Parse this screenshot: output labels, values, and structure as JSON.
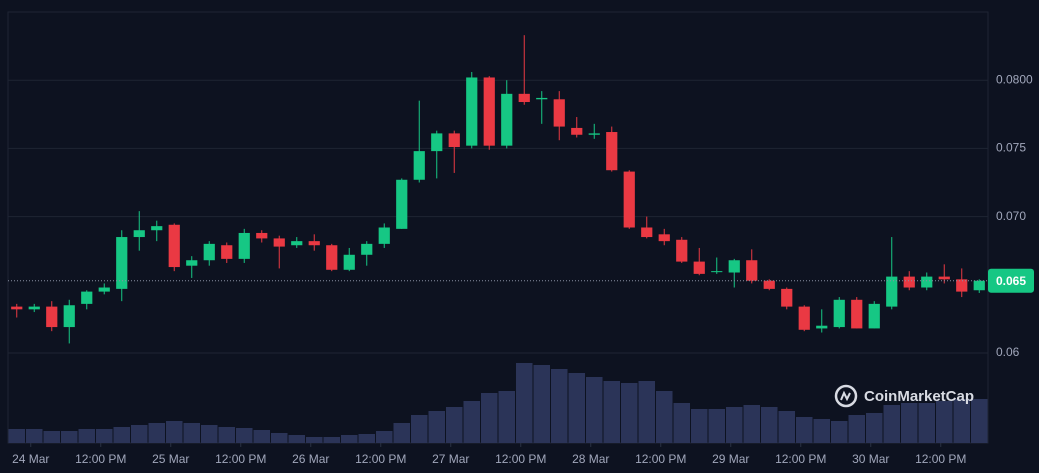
{
  "chart_data": {
    "type": "candlestick",
    "open": [
      0.0634,
      0.0632,
      0.0634,
      0.0619,
      0.0636,
      0.0645,
      0.0647,
      0.0685,
      0.069,
      0.0694,
      0.0664,
      0.0668,
      0.0679,
      0.0669,
      0.0688,
      0.0684,
      0.0679,
      0.0682,
      0.0679,
      0.0661,
      0.0672,
      0.068,
      0.0691,
      0.0727,
      0.0748,
      0.0761,
      0.0752,
      0.0802,
      0.0752,
      0.079,
      0.0786,
      0.0786,
      0.0765,
      0.076,
      0.0762,
      0.0733,
      0.0692,
      0.0687,
      0.0683,
      0.0667,
      0.066,
      0.0659,
      0.0668,
      0.0653,
      0.0647,
      0.0634,
      0.0618,
      0.0619,
      0.0639,
      0.0618,
      0.0634,
      0.0656,
      0.0648,
      0.0656,
      0.0654,
      0.0646
    ],
    "high": [
      0.0636,
      0.0636,
      0.0638,
      0.0639,
      0.0646,
      0.0651,
      0.069,
      0.0704,
      0.0697,
      0.0695,
      0.0671,
      0.0682,
      0.0681,
      0.0691,
      0.069,
      0.0686,
      0.0685,
      0.0687,
      0.068,
      0.0677,
      0.0682,
      0.0695,
      0.0728,
      0.0785,
      0.0763,
      0.0763,
      0.0806,
      0.0803,
      0.08,
      0.0833,
      0.0792,
      0.0792,
      0.0773,
      0.0768,
      0.0766,
      0.0734,
      0.07,
      0.0691,
      0.0685,
      0.0677,
      0.067,
      0.0669,
      0.0676,
      0.0654,
      0.0648,
      0.0635,
      0.0632,
      0.0641,
      0.0641,
      0.0638,
      0.0685,
      0.066,
      0.0659,
      0.0665,
      0.0662,
      0.0654
    ],
    "low": [
      0.0626,
      0.063,
      0.0616,
      0.0607,
      0.0632,
      0.0643,
      0.0638,
      0.0675,
      0.0682,
      0.066,
      0.0655,
      0.0664,
      0.0666,
      0.0666,
      0.0681,
      0.0662,
      0.0677,
      0.0675,
      0.066,
      0.066,
      0.0664,
      0.0677,
      0.0691,
      0.0725,
      0.0728,
      0.0732,
      0.075,
      0.0749,
      0.075,
      0.0782,
      0.0768,
      0.0756,
      0.0758,
      0.0757,
      0.0733,
      0.0691,
      0.0684,
      0.0679,
      0.0666,
      0.0657,
      0.0658,
      0.0648,
      0.0651,
      0.0646,
      0.0632,
      0.0616,
      0.0615,
      0.0618,
      0.0618,
      0.0618,
      0.0632,
      0.0646,
      0.0646,
      0.0651,
      0.0641,
      0.0644
    ],
    "close": [
      0.0632,
      0.0634,
      0.0619,
      0.0635,
      0.0645,
      0.0648,
      0.0685,
      0.069,
      0.0693,
      0.0663,
      0.0668,
      0.068,
      0.0669,
      0.0688,
      0.0684,
      0.0678,
      0.0682,
      0.0679,
      0.0661,
      0.0672,
      0.068,
      0.0692,
      0.0727,
      0.0748,
      0.0761,
      0.0751,
      0.0802,
      0.0752,
      0.079,
      0.0784,
      0.0787,
      0.0766,
      0.076,
      0.0761,
      0.0734,
      0.0692,
      0.0685,
      0.0682,
      0.0667,
      0.0658,
      0.066,
      0.0668,
      0.0653,
      0.0647,
      0.0634,
      0.0617,
      0.062,
      0.0639,
      0.0618,
      0.0636,
      0.0656,
      0.0648,
      0.0656,
      0.0654,
      0.0645,
      0.0653
    ],
    "volume": [
      14,
      14,
      12,
      12,
      14,
      14,
      16,
      18,
      20,
      22,
      20,
      18,
      16,
      15,
      13,
      10,
      8,
      6,
      6,
      8,
      9,
      12,
      20,
      28,
      32,
      36,
      42,
      50,
      52,
      80,
      78,
      74,
      70,
      66,
      62,
      60,
      62,
      52,
      40,
      34,
      34,
      36,
      38,
      36,
      32,
      26,
      24,
      22,
      28,
      30,
      38,
      40,
      40,
      42,
      44,
      44
    ],
    "up_color": "#16c784",
    "down_color": "#ea3943",
    "volume_color": "#2b3458",
    "ylim": [
      0.0534,
      0.085
    ],
    "yticks": [
      0.06,
      {
        "value": 0.07,
        "label": "0.070"
      },
      0.075,
      {
        "value": 0.08,
        "label": "0.0800"
      }
    ],
    "xlim": [
      -0.5,
      55.5
    ],
    "xticks": [
      {
        "value": 0.8,
        "label": "24 Mar"
      },
      {
        "value": 4.8,
        "label": "12:00 PM"
      },
      {
        "value": 8.8,
        "label": "25 Mar"
      },
      {
        "value": 12.8,
        "label": "12:00 PM"
      },
      {
        "value": 16.8,
        "label": "26 Mar"
      },
      {
        "value": 20.8,
        "label": "12:00 PM"
      },
      {
        "value": 24.8,
        "label": "27 Mar"
      },
      {
        "value": 28.8,
        "label": "12:00 PM"
      },
      {
        "value": 32.8,
        "label": "28 Mar"
      },
      {
        "value": 36.8,
        "label": "12:00 PM"
      },
      {
        "value": 40.8,
        "label": "29 Mar"
      },
      {
        "value": 44.8,
        "label": "12:00 PM"
      },
      {
        "value": 48.8,
        "label": "30 Mar"
      },
      {
        "value": 52.8,
        "label": "12:00 PM"
      }
    ],
    "last_price": {
      "value": 0.0653,
      "label": "0.065"
    },
    "grid": true,
    "watermark": "CoinMarketCap"
  }
}
